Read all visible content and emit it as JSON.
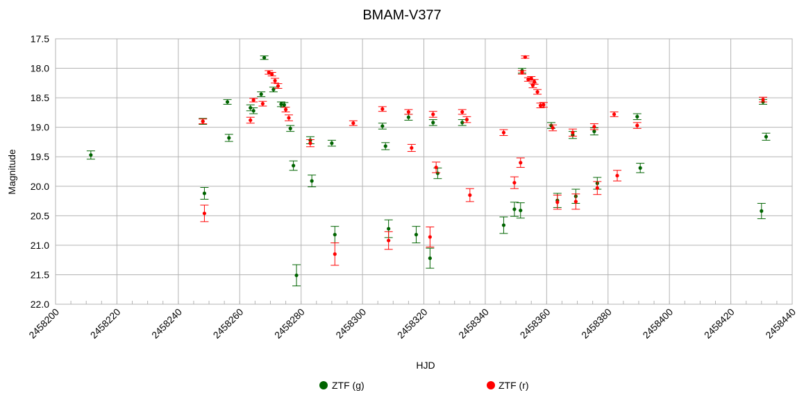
{
  "chart_data": {
    "type": "scatter",
    "title": "BMAM-V377",
    "xlabel": "HJD",
    "ylabel": "Magnitude",
    "xlim": [
      2458200,
      2458440
    ],
    "ylim": [
      17.5,
      22.0
    ],
    "y_inverted": true,
    "x_ticks": [
      2458200,
      2458220,
      2458240,
      2458260,
      2458280,
      2458300,
      2458320,
      2458340,
      2458360,
      2458380,
      2458400,
      2458420,
      2458440
    ],
    "y_ticks": [
      "17.5",
      "18.0",
      "18.5",
      "19.0",
      "19.5",
      "20.0",
      "20.5",
      "21.0",
      "21.5",
      "22.0"
    ],
    "grid": true,
    "legend_position": "bottom",
    "series": [
      {
        "name": "ZTF (g)",
        "color": "#006400",
        "points": [
          [
            2458211.5,
            19.47,
            0.07
          ],
          [
            2458248.0,
            18.9,
            0.05
          ],
          [
            2458248.5,
            20.12,
            0.1
          ],
          [
            2458256.0,
            18.57,
            0.04
          ],
          [
            2458256.5,
            19.18,
            0.06
          ],
          [
            2458263.5,
            18.67,
            0.05
          ],
          [
            2458264.5,
            18.72,
            0.05
          ],
          [
            2458267.0,
            18.44,
            0.04
          ],
          [
            2458268.0,
            17.82,
            0.03
          ],
          [
            2458271.0,
            18.36,
            0.04
          ],
          [
            2458273.5,
            18.61,
            0.04
          ],
          [
            2458274.5,
            18.62,
            0.04
          ],
          [
            2458276.5,
            19.02,
            0.05
          ],
          [
            2458277.5,
            19.65,
            0.08
          ],
          [
            2458278.5,
            21.51,
            0.18
          ],
          [
            2458283.0,
            19.22,
            0.06
          ],
          [
            2458283.5,
            19.91,
            0.1
          ],
          [
            2458290.0,
            19.27,
            0.05
          ],
          [
            2458291.0,
            20.82,
            0.14
          ],
          [
            2458306.5,
            18.98,
            0.05
          ],
          [
            2458307.5,
            19.32,
            0.06
          ],
          [
            2458308.5,
            20.72,
            0.15
          ],
          [
            2458315.0,
            18.83,
            0.05
          ],
          [
            2458317.5,
            20.82,
            0.14
          ],
          [
            2458322.0,
            21.22,
            0.17
          ],
          [
            2458323.0,
            18.92,
            0.05
          ],
          [
            2458324.5,
            19.78,
            0.09
          ],
          [
            2458332.5,
            18.92,
            0.05
          ],
          [
            2458346.0,
            20.66,
            0.14
          ],
          [
            2458349.5,
            20.39,
            0.12
          ],
          [
            2458351.5,
            20.41,
            0.13
          ],
          [
            2458352.0,
            18.04,
            0.04
          ],
          [
            2458361.5,
            18.97,
            0.05
          ],
          [
            2458363.5,
            20.24,
            0.12
          ],
          [
            2458368.5,
            19.13,
            0.06
          ],
          [
            2458369.5,
            20.17,
            0.12
          ],
          [
            2458375.5,
            19.07,
            0.06
          ],
          [
            2458376.5,
            19.95,
            0.1
          ],
          [
            2458389.5,
            18.82,
            0.05
          ],
          [
            2458390.5,
            19.69,
            0.08
          ],
          [
            2458430.0,
            20.42,
            0.13
          ],
          [
            2458430.5,
            18.57,
            0.04
          ],
          [
            2458431.5,
            19.16,
            0.06
          ]
        ]
      },
      {
        "name": "ZTF (r)",
        "color": "#ff0000",
        "points": [
          [
            2458248.0,
            18.9,
            0.04
          ],
          [
            2458248.5,
            20.46,
            0.14
          ],
          [
            2458263.5,
            18.88,
            0.05
          ],
          [
            2458264.5,
            18.54,
            0.03
          ],
          [
            2458267.5,
            18.6,
            0.04
          ],
          [
            2458269.5,
            18.07,
            0.03
          ],
          [
            2458270.5,
            18.1,
            0.03
          ],
          [
            2458271.5,
            18.21,
            0.04
          ],
          [
            2458272.5,
            18.3,
            0.04
          ],
          [
            2458275.0,
            18.7,
            0.04
          ],
          [
            2458276.0,
            18.84,
            0.05
          ],
          [
            2458283.0,
            19.27,
            0.06
          ],
          [
            2458291.0,
            21.15,
            0.19
          ],
          [
            2458297.0,
            18.93,
            0.04
          ],
          [
            2458306.5,
            18.69,
            0.04
          ],
          [
            2458308.5,
            20.92,
            0.15
          ],
          [
            2458315.0,
            18.74,
            0.04
          ],
          [
            2458316.0,
            19.35,
            0.06
          ],
          [
            2458322.0,
            20.86,
            0.17
          ],
          [
            2458323.0,
            18.78,
            0.05
          ],
          [
            2458324.0,
            19.68,
            0.09
          ],
          [
            2458332.5,
            18.74,
            0.04
          ],
          [
            2458334.0,
            18.87,
            0.05
          ],
          [
            2458335.0,
            20.15,
            0.11
          ],
          [
            2458346.0,
            19.09,
            0.05
          ],
          [
            2458349.5,
            19.94,
            0.1
          ],
          [
            2458351.5,
            19.6,
            0.08
          ],
          [
            2458352.0,
            18.07,
            0.03
          ],
          [
            2458353.0,
            17.81,
            0.02
          ],
          [
            2458354.0,
            18.19,
            0.03
          ],
          [
            2458355.0,
            18.17,
            0.03
          ],
          [
            2458355.5,
            18.29,
            0.04
          ],
          [
            2458356.0,
            18.23,
            0.04
          ],
          [
            2458357.0,
            18.4,
            0.04
          ],
          [
            2458358.0,
            18.63,
            0.04
          ],
          [
            2458359.0,
            18.62,
            0.04
          ],
          [
            2458362.0,
            19.01,
            0.05
          ],
          [
            2458363.5,
            20.27,
            0.12
          ],
          [
            2458368.5,
            19.09,
            0.06
          ],
          [
            2458369.5,
            20.26,
            0.13
          ],
          [
            2458375.5,
            18.99,
            0.05
          ],
          [
            2458376.5,
            20.03,
            0.11
          ],
          [
            2458382.0,
            18.78,
            0.04
          ],
          [
            2458383.0,
            19.82,
            0.09
          ],
          [
            2458389.5,
            18.97,
            0.05
          ],
          [
            2458430.5,
            18.53,
            0.04
          ]
        ]
      }
    ]
  }
}
